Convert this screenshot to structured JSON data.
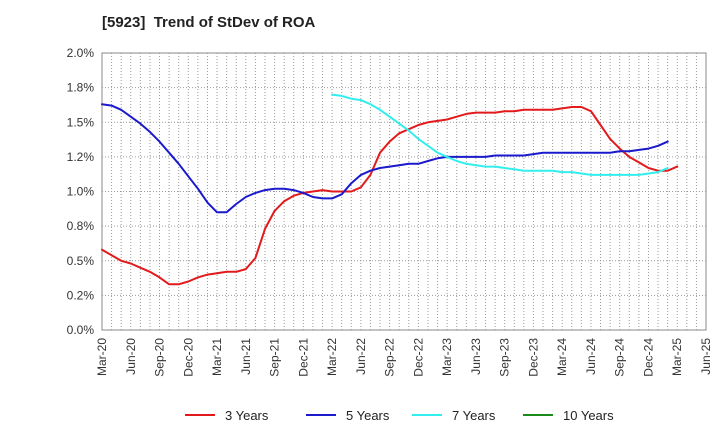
{
  "chart_data": {
    "type": "line",
    "title": "[5923]  Trend of StDev of ROA",
    "xlabel": "",
    "ylabel": "",
    "ylim": [
      0,
      2.0
    ],
    "y_ticks": [
      "0.0%",
      "0.2%",
      "0.5%",
      "0.8%",
      "1.0%",
      "1.2%",
      "1.5%",
      "1.8%",
      "2.0%"
    ],
    "x_ticks": [
      "Mar-20",
      "Jun-20",
      "Sep-20",
      "Dec-20",
      "Mar-21",
      "Jun-21",
      "Sep-21",
      "Dec-21",
      "Mar-22",
      "Jun-22",
      "Sep-22",
      "Dec-22",
      "Mar-23",
      "Jun-23",
      "Sep-23",
      "Dec-23",
      "Mar-24",
      "Jun-24",
      "Sep-24",
      "Dec-24",
      "Mar-25",
      "Jun-25"
    ],
    "x_unit": "month index from Mar-20",
    "grid": true,
    "legend_position": "bottom",
    "series": [
      {
        "name": "3 Years",
        "color": "#e31a1c",
        "points": [
          [
            0,
            0.58
          ],
          [
            1,
            0.54
          ],
          [
            2,
            0.5
          ],
          [
            3,
            0.48
          ],
          [
            4,
            0.45
          ],
          [
            5,
            0.42
          ],
          [
            6,
            0.38
          ],
          [
            7,
            0.33
          ],
          [
            8,
            0.33
          ],
          [
            9,
            0.35
          ],
          [
            10,
            0.38
          ],
          [
            11,
            0.4
          ],
          [
            12,
            0.41
          ],
          [
            13,
            0.42
          ],
          [
            14,
            0.42
          ],
          [
            15,
            0.44
          ],
          [
            16,
            0.52
          ],
          [
            17,
            0.73
          ],
          [
            18,
            0.86
          ],
          [
            19,
            0.93
          ],
          [
            20,
            0.97
          ],
          [
            21,
            0.99
          ],
          [
            22,
            1.0
          ],
          [
            23,
            1.01
          ],
          [
            24,
            1.0
          ],
          [
            25,
            1.0
          ],
          [
            26,
            1.0
          ],
          [
            27,
            1.03
          ],
          [
            28,
            1.12
          ],
          [
            29,
            1.28
          ],
          [
            30,
            1.36
          ],
          [
            31,
            1.42
          ],
          [
            32,
            1.45
          ],
          [
            33,
            1.48
          ],
          [
            34,
            1.5
          ],
          [
            35,
            1.51
          ],
          [
            36,
            1.52
          ],
          [
            37,
            1.54
          ],
          [
            38,
            1.56
          ],
          [
            39,
            1.57
          ],
          [
            40,
            1.57
          ],
          [
            41,
            1.57
          ],
          [
            42,
            1.58
          ],
          [
            43,
            1.58
          ],
          [
            44,
            1.59
          ],
          [
            45,
            1.59
          ],
          [
            46,
            1.59
          ],
          [
            47,
            1.59
          ],
          [
            48,
            1.6
          ],
          [
            49,
            1.61
          ],
          [
            50,
            1.61
          ],
          [
            51,
            1.58
          ],
          [
            52,
            1.48
          ],
          [
            53,
            1.38
          ],
          [
            54,
            1.31
          ],
          [
            55,
            1.25
          ],
          [
            56,
            1.21
          ],
          [
            57,
            1.17
          ],
          [
            58,
            1.15
          ],
          [
            59,
            1.15
          ],
          [
            60,
            1.18
          ]
        ]
      },
      {
        "name": "5 Years",
        "color": "#1a1acc",
        "points": [
          [
            0,
            1.63
          ],
          [
            1,
            1.62
          ],
          [
            2,
            1.59
          ],
          [
            3,
            1.54
          ],
          [
            4,
            1.49
          ],
          [
            5,
            1.43
          ],
          [
            6,
            1.36
          ],
          [
            7,
            1.28
          ],
          [
            8,
            1.2
          ],
          [
            9,
            1.11
          ],
          [
            10,
            1.02
          ],
          [
            11,
            0.92
          ],
          [
            12,
            0.85
          ],
          [
            13,
            0.85
          ],
          [
            14,
            0.91
          ],
          [
            15,
            0.96
          ],
          [
            16,
            0.99
          ],
          [
            17,
            1.01
          ],
          [
            18,
            1.02
          ],
          [
            19,
            1.02
          ],
          [
            20,
            1.01
          ],
          [
            21,
            0.99
          ],
          [
            22,
            0.96
          ],
          [
            23,
            0.95
          ],
          [
            24,
            0.95
          ],
          [
            25,
            0.98
          ],
          [
            26,
            1.06
          ],
          [
            27,
            1.12
          ],
          [
            28,
            1.15
          ],
          [
            29,
            1.17
          ],
          [
            30,
            1.18
          ],
          [
            31,
            1.19
          ],
          [
            32,
            1.2
          ],
          [
            33,
            1.2
          ],
          [
            34,
            1.22
          ],
          [
            35,
            1.24
          ],
          [
            36,
            1.25
          ],
          [
            37,
            1.25
          ],
          [
            38,
            1.25
          ],
          [
            39,
            1.25
          ],
          [
            40,
            1.25
          ],
          [
            41,
            1.26
          ],
          [
            42,
            1.26
          ],
          [
            43,
            1.26
          ],
          [
            44,
            1.26
          ],
          [
            45,
            1.27
          ],
          [
            46,
            1.28
          ],
          [
            47,
            1.28
          ],
          [
            48,
            1.28
          ],
          [
            49,
            1.28
          ],
          [
            50,
            1.28
          ],
          [
            51,
            1.28
          ],
          [
            52,
            1.28
          ],
          [
            53,
            1.28
          ],
          [
            54,
            1.29
          ],
          [
            55,
            1.29
          ],
          [
            56,
            1.3
          ],
          [
            57,
            1.31
          ],
          [
            58,
            1.33
          ],
          [
            59,
            1.36
          ]
        ]
      },
      {
        "name": "7 Years",
        "color": "#33eeee",
        "points": [
          [
            24,
            1.7
          ],
          [
            25,
            1.69
          ],
          [
            26,
            1.67
          ],
          [
            27,
            1.66
          ],
          [
            28,
            1.63
          ],
          [
            29,
            1.59
          ],
          [
            30,
            1.54
          ],
          [
            31,
            1.49
          ],
          [
            32,
            1.44
          ],
          [
            33,
            1.38
          ],
          [
            34,
            1.33
          ],
          [
            35,
            1.28
          ],
          [
            36,
            1.25
          ],
          [
            37,
            1.22
          ],
          [
            38,
            1.2
          ],
          [
            39,
            1.19
          ],
          [
            40,
            1.18
          ],
          [
            41,
            1.18
          ],
          [
            42,
            1.17
          ],
          [
            43,
            1.16
          ],
          [
            44,
            1.15
          ],
          [
            45,
            1.15
          ],
          [
            46,
            1.15
          ],
          [
            47,
            1.15
          ],
          [
            48,
            1.14
          ],
          [
            49,
            1.14
          ],
          [
            50,
            1.13
          ],
          [
            51,
            1.12
          ],
          [
            52,
            1.12
          ],
          [
            53,
            1.12
          ],
          [
            54,
            1.12
          ],
          [
            55,
            1.12
          ],
          [
            56,
            1.12
          ],
          [
            57,
            1.13
          ],
          [
            58,
            1.14
          ],
          [
            59,
            1.17
          ]
        ]
      },
      {
        "name": "10 Years",
        "color": "#1a8a1a",
        "points": []
      }
    ]
  }
}
